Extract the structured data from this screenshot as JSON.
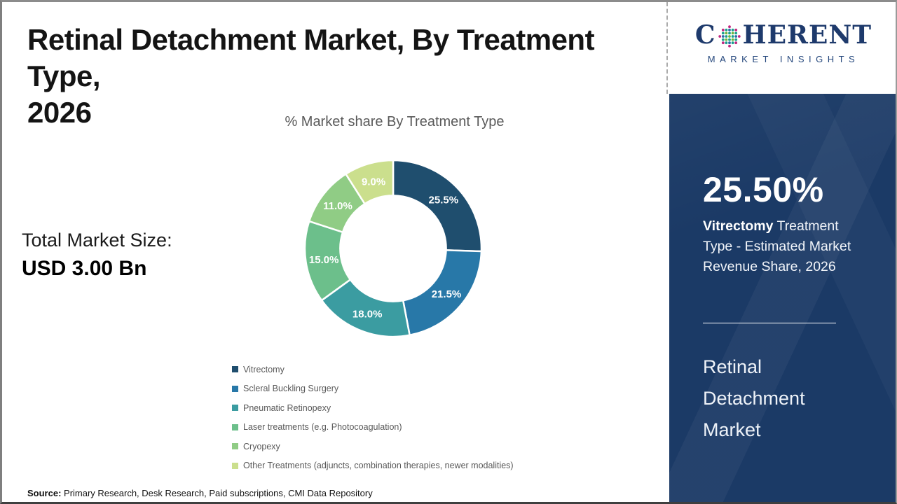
{
  "page": {
    "title_lines": [
      "Retinal Detachment Market, By Treatment Type,",
      "2026"
    ]
  },
  "left_panel": {
    "total_label": "Total Market Size:",
    "total_value": "USD 3.00 Bn"
  },
  "source": {
    "prefix": "Source:",
    "text": " Primary Research, Desk Research, Paid subscriptions, CMI Data Repository"
  },
  "chart_data": {
    "type": "pie",
    "subtype": "donut",
    "title": "% Market share By Treatment Type",
    "categories": [
      "Vitrectomy",
      "Scleral Buckling Surgery",
      "Pneumatic Retinopexy",
      "Laser treatments (e.g. Photocoagulation)",
      "Cryopexy",
      "Other Treatments (adjuncts, combination therapies, newer modalities)"
    ],
    "values": [
      25.5,
      21.5,
      18.0,
      15.0,
      11.0,
      9.0
    ],
    "labels": [
      "25.5%",
      "21.5%",
      "18.0%",
      "15.0%",
      "11.0%",
      "9.0%"
    ],
    "colors": [
      "#1F4E6E",
      "#2878A8",
      "#3B9CA1",
      "#6CBF8B",
      "#90CC85",
      "#CBDF8D"
    ],
    "start_angle_deg": 0,
    "direction": "clockwise",
    "inner_radius_ratio": 0.6,
    "legend_position": "bottom-left",
    "label_color": "#ffffff"
  },
  "sidebar": {
    "logo": {
      "word_start": "C",
      "word_end": "HERENT",
      "subtitle": "MARKET INSIGHTS",
      "navy": "#1e3a6c",
      "dot_colors": [
        "#c2267f",
        "#2f6aa8",
        "#18a08e",
        "#6fb43f"
      ]
    },
    "bg_color": "#1b3a66",
    "stat_value": "25.50%",
    "stat_bold": "Vitrectomy",
    "stat_rest": " Treatment Type - Estimated Market Revenue Share, 2026",
    "market_name": "Retinal Detachment Market"
  }
}
